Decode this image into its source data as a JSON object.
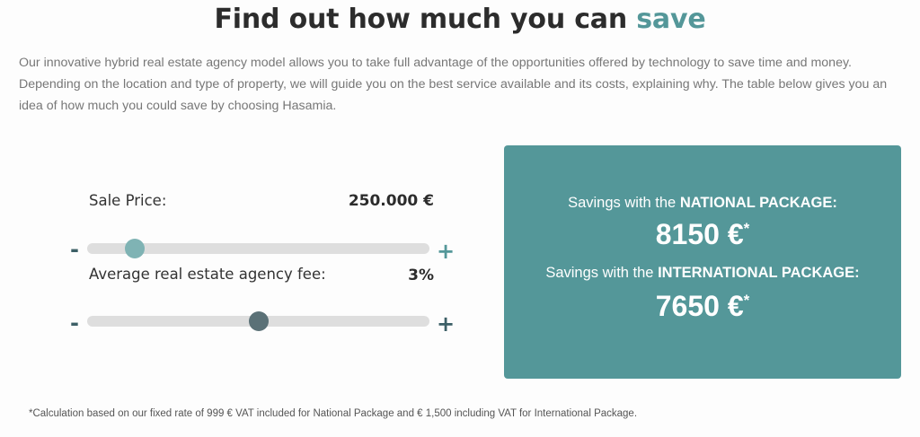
{
  "header": {
    "title_main": "Find out how much you can",
    "title_accent": "save",
    "accent_color": "#549799"
  },
  "intro": {
    "text": "Our innovative hybrid real estate agency model allows you to take full advantage of the opportunities offered by technology to save time and money. Depending on the location and type of property, we will guide you on the best service available and its costs, explaining why. The table below gives you an idea of how much you could save by choosing Hasamia."
  },
  "calculator": {
    "sale_price": {
      "label": "Sale Price:",
      "value": "250.000 €",
      "minus": "-",
      "plus": "+",
      "slider_level": 0.1,
      "thumb_color": "#7fb3b4"
    },
    "agency_fee": {
      "label": "Average real estate agency fee:",
      "value": "3%",
      "minus": "-",
      "plus": "+",
      "slider_level": 0.5,
      "thumb_color": "#5b7177"
    }
  },
  "savings": {
    "national_prefix": "Savings with the ",
    "national_package": "NATIONAL PACKAGE:",
    "national_amount": "8150 €",
    "national_asterisk": "*",
    "international_prefix": "Savings with the ",
    "international_package": "INTERNATIONAL PACKAGE:",
    "international_amount": "7650 €",
    "international_asterisk": "*",
    "panel_color": "#549799"
  },
  "footnote": {
    "text": "*Calculation based on our fixed rate of 999 € VAT included for National Package and € 1,500 including VAT for International Package."
  }
}
